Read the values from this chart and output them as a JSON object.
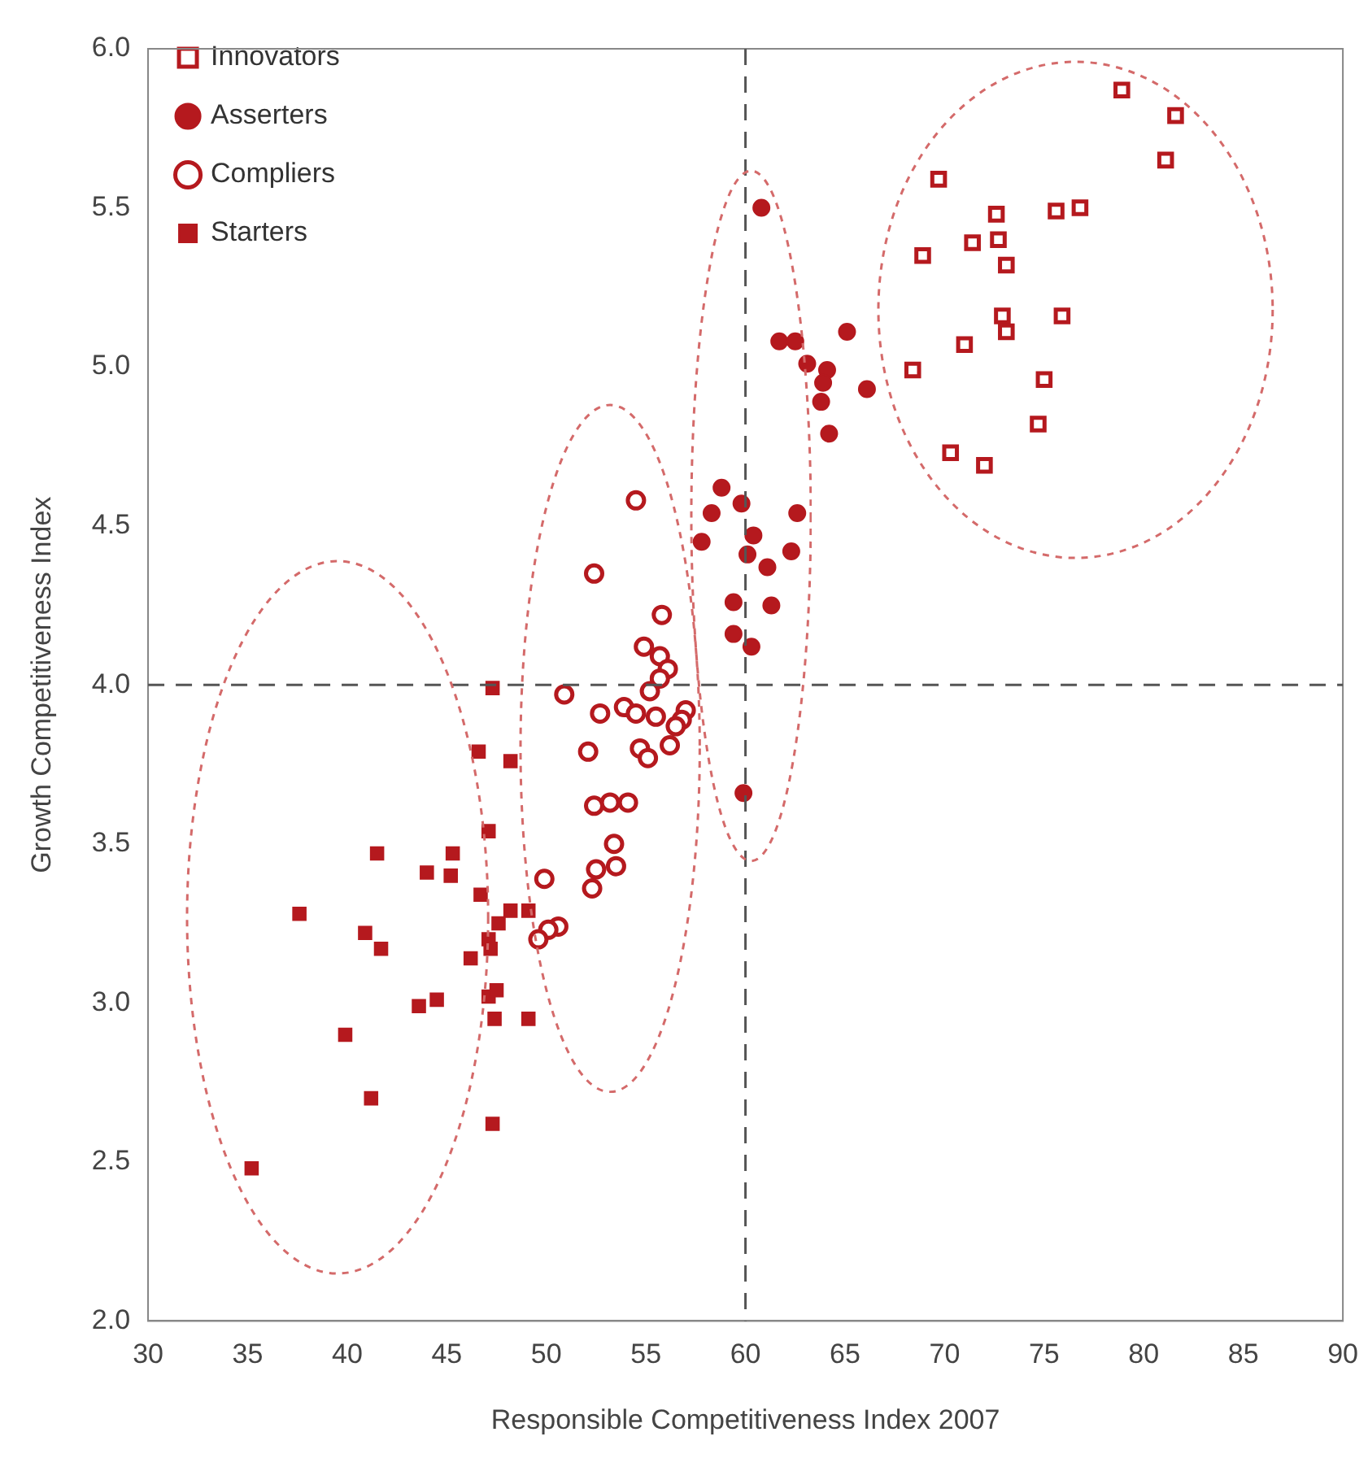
{
  "chart_data": {
    "type": "scatter",
    "xlabel": "Responsible Competitiveness Index 2007",
    "ylabel": "Growth Competitiveness Index",
    "xlim": [
      30,
      90
    ],
    "xticks": [
      30,
      35,
      40,
      45,
      50,
      55,
      60,
      65,
      70,
      75,
      80,
      85,
      90
    ],
    "ylim": [
      2.0,
      6.0
    ],
    "yticks": [
      {
        "value": 2.0,
        "label": "2.0"
      },
      {
        "value": 2.5,
        "label": "2.5"
      },
      {
        "value": 3.0,
        "label": "3.0"
      },
      {
        "value": 3.5,
        "label": "3.5"
      },
      {
        "value": 4.0,
        "label": "4.0"
      },
      {
        "value": 4.5,
        "label": "4.5"
      },
      {
        "value": 5.0,
        "label": "5.0"
      },
      {
        "value": 5.5,
        "label": "5.5"
      },
      {
        "value": 6.0,
        "label": "6.0"
      }
    ],
    "grid": false,
    "legend": "top left",
    "ref_lines": [
      {
        "axis": "x",
        "value": 60,
        "color": "#555555",
        "line_style": "dashed"
      },
      {
        "axis": "y",
        "value": 4.0,
        "color": "#555555",
        "line_style": "dashed"
      }
    ],
    "series": [
      {
        "name": "Innovators",
        "color": "#b5191e",
        "marker": "square-open",
        "x": [
          78.9,
          81.6,
          81.1,
          69.7,
          72.6,
          75.6,
          76.8,
          71.4,
          72.7,
          68.9,
          73.1,
          72.9,
          73.1,
          75.9,
          71.0,
          68.4,
          75.0,
          74.7,
          70.3,
          72.0
        ],
        "values": [
          5.87,
          5.79,
          5.65,
          5.59,
          5.48,
          5.49,
          5.5,
          5.39,
          5.4,
          5.35,
          5.32,
          5.16,
          5.11,
          5.16,
          5.07,
          4.99,
          4.96,
          4.82,
          4.73,
          4.69
        ]
      },
      {
        "name": "Asserters",
        "color": "#b5191e",
        "marker": "circle",
        "x": [
          60.8,
          61.7,
          62.5,
          65.1,
          63.1,
          64.1,
          63.9,
          66.1,
          63.8,
          64.2,
          58.8,
          58.3,
          59.8,
          62.6,
          57.8,
          60.4,
          60.1,
          62.3,
          61.1,
          59.4,
          61.3,
          59.4,
          60.3,
          59.9
        ],
        "values": [
          5.5,
          5.08,
          5.08,
          5.11,
          5.01,
          4.99,
          4.95,
          4.93,
          4.89,
          4.79,
          4.62,
          4.54,
          4.57,
          4.54,
          4.45,
          4.47,
          4.41,
          4.42,
          4.37,
          4.26,
          4.25,
          4.16,
          4.12,
          3.66
        ]
      },
      {
        "name": "Compliers",
        "color": "#b5191e",
        "marker": "circle-open",
        "x": [
          54.5,
          52.4,
          55.8,
          54.9,
          55.7,
          56.1,
          55.7,
          55.2,
          50.9,
          52.7,
          53.9,
          54.5,
          55.5,
          57.0,
          56.8,
          56.5,
          56.2,
          54.7,
          55.1,
          52.1,
          52.4,
          53.2,
          54.1,
          53.4,
          52.5,
          53.5,
          52.3,
          49.9,
          50.6,
          50.1,
          49.6
        ],
        "values": [
          4.58,
          4.35,
          4.22,
          4.12,
          4.09,
          4.05,
          4.02,
          3.98,
          3.97,
          3.91,
          3.93,
          3.91,
          3.9,
          3.92,
          3.89,
          3.87,
          3.81,
          3.8,
          3.77,
          3.79,
          3.62,
          3.63,
          3.63,
          3.5,
          3.42,
          3.43,
          3.36,
          3.39,
          3.24,
          3.23,
          3.2
        ]
      },
      {
        "name": "Starters",
        "color": "#b5191e",
        "marker": "square",
        "x": [
          47.3,
          46.6,
          48.2,
          47.1,
          41.5,
          45.3,
          44.0,
          45.2,
          46.7,
          37.6,
          48.2,
          49.1,
          47.6,
          40.9,
          47.1,
          41.7,
          47.2,
          46.2,
          43.6,
          44.5,
          47.1,
          47.5,
          47.4,
          49.1,
          39.9,
          41.2,
          47.3,
          35.2
        ],
        "values": [
          3.99,
          3.79,
          3.76,
          3.54,
          3.47,
          3.47,
          3.41,
          3.4,
          3.34,
          3.28,
          3.29,
          3.29,
          3.25,
          3.22,
          3.2,
          3.17,
          3.17,
          3.14,
          2.99,
          3.01,
          3.02,
          3.04,
          2.95,
          2.95,
          2.9,
          2.7,
          2.62,
          2.48
        ]
      }
    ]
  }
}
